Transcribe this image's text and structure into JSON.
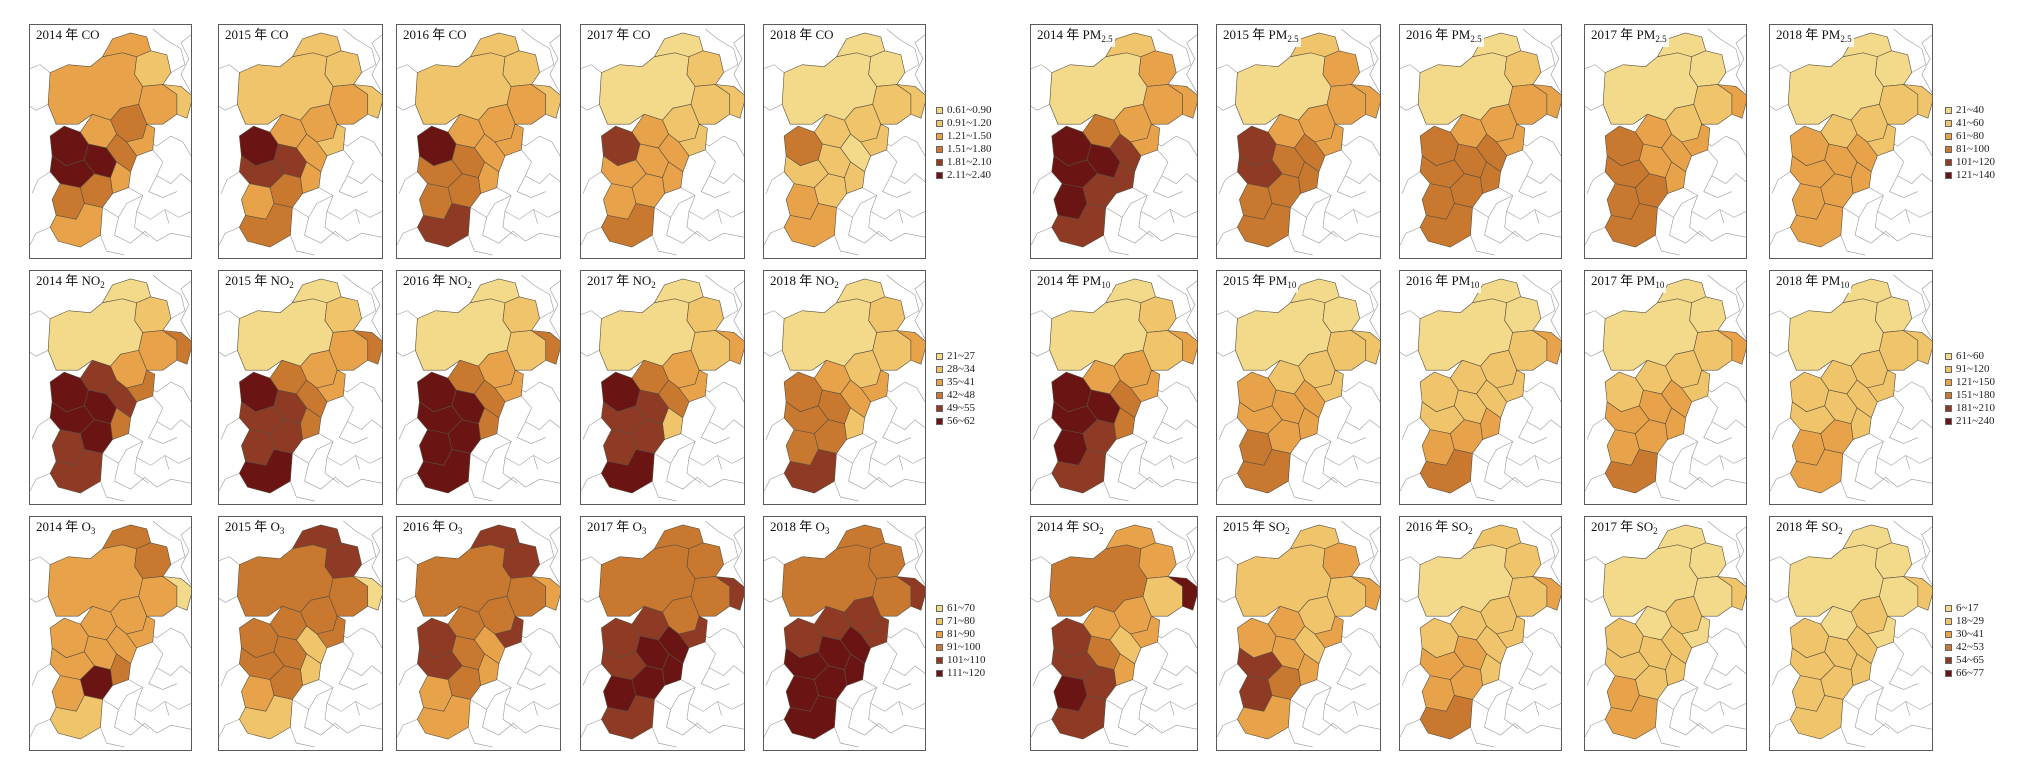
{
  "panels": [
    {
      "id": "co-2014",
      "year": "2014",
      "sep": " 年 ",
      "pol": "CO",
      "sub": "",
      "group": "left",
      "row": 0,
      "col": 0,
      "levels": [
        3,
        3,
        2,
        3,
        4,
        3,
        3,
        2,
        6,
        6,
        6,
        4,
        3,
        4,
        4,
        3
      ]
    },
    {
      "id": "co-2015",
      "year": "2015",
      "sep": " 年 ",
      "pol": "CO",
      "sub": "",
      "group": "left",
      "row": 0,
      "col": 1,
      "levels": [
        2,
        2,
        2,
        3,
        3,
        3,
        2,
        2,
        6,
        5,
        5,
        3,
        3,
        4,
        3,
        4
      ]
    },
    {
      "id": "co-2016",
      "year": "2016",
      "sep": " 年 ",
      "pol": "CO",
      "sub": "",
      "group": "left",
      "row": 0,
      "col": 2,
      "levels": [
        2,
        2,
        2,
        3,
        3,
        3,
        3,
        2,
        6,
        4,
        4,
        3,
        3,
        4,
        4,
        5
      ]
    },
    {
      "id": "co-2017",
      "year": "2017",
      "sep": " 年 ",
      "pol": "CO",
      "sub": "",
      "group": "left",
      "row": 0,
      "col": 3,
      "levels": [
        1,
        1,
        2,
        2,
        2,
        3,
        2,
        2,
        5,
        3,
        3,
        3,
        3,
        3,
        3,
        4
      ]
    },
    {
      "id": "co-2018",
      "year": "2018",
      "sep": " 年 ",
      "pol": "CO",
      "sub": "",
      "group": "left",
      "row": 0,
      "col": 4,
      "levels": [
        1,
        1,
        1,
        2,
        2,
        2,
        2,
        2,
        4,
        2,
        2,
        1,
        2,
        2,
        3,
        3
      ]
    },
    {
      "id": "no2-2014",
      "year": "2014",
      "sep": " 年 ",
      "pol": "NO",
      "sub": "2",
      "group": "left",
      "row": 1,
      "col": 0,
      "levels": [
        1,
        1,
        2,
        3,
        3,
        5,
        4,
        4,
        6,
        6,
        6,
        5,
        4,
        6,
        5,
        5
      ]
    },
    {
      "id": "no2-2015",
      "year": "2015",
      "sep": " 年 ",
      "pol": "NO",
      "sub": "2",
      "group": "left",
      "row": 1,
      "col": 1,
      "levels": [
        1,
        1,
        2,
        3,
        3,
        4,
        3,
        4,
        6,
        5,
        5,
        4,
        4,
        5,
        5,
        6
      ]
    },
    {
      "id": "no2-2016",
      "year": "2016",
      "sep": " 年 ",
      "pol": "NO",
      "sub": "2",
      "group": "left",
      "row": 1,
      "col": 2,
      "levels": [
        1,
        1,
        2,
        2,
        3,
        4,
        3,
        4,
        6,
        6,
        6,
        4,
        4,
        6,
        6,
        6
      ]
    },
    {
      "id": "no2-2017",
      "year": "2017",
      "sep": " 年 ",
      "pol": "NO",
      "sub": "2",
      "group": "left",
      "row": 1,
      "col": 3,
      "levels": [
        1,
        1,
        2,
        2,
        3,
        4,
        3,
        3,
        6,
        5,
        5,
        4,
        2,
        5,
        5,
        6
      ]
    },
    {
      "id": "no2-2018",
      "year": "2018",
      "sep": " 年 ",
      "pol": "NO",
      "sub": "2",
      "group": "left",
      "row": 1,
      "col": 4,
      "levels": [
        1,
        1,
        2,
        2,
        2,
        3,
        3,
        3,
        4,
        4,
        4,
        3,
        2,
        4,
        4,
        5
      ]
    },
    {
      "id": "o3-2014",
      "year": "2014",
      "sep": " 年 ",
      "pol": "O",
      "sub": "3",
      "group": "left",
      "row": 2,
      "col": 0,
      "levels": [
        3,
        4,
        4,
        3,
        3,
        3,
        3,
        1,
        3,
        3,
        3,
        3,
        4,
        6,
        3,
        2
      ]
    },
    {
      "id": "o3-2015",
      "year": "2015",
      "sep": " 年 ",
      "pol": "O",
      "sub": "3",
      "group": "left",
      "row": 2,
      "col": 1,
      "levels": [
        4,
        5,
        5,
        4,
        4,
        4,
        4,
        1,
        4,
        4,
        4,
        2,
        2,
        4,
        3,
        2
      ]
    },
    {
      "id": "o3-2016",
      "year": "2016",
      "sep": " 年 ",
      "pol": "O",
      "sub": "3",
      "group": "left",
      "row": 2,
      "col": 2,
      "levels": [
        4,
        5,
        5,
        4,
        4,
        4,
        5,
        3,
        5,
        5,
        4,
        3,
        3,
        4,
        3,
        3
      ]
    },
    {
      "id": "o3-2017",
      "year": "2017",
      "sep": " 年 ",
      "pol": "O",
      "sub": "3",
      "group": "left",
      "row": 2,
      "col": 3,
      "levels": [
        4,
        4,
        4,
        4,
        4,
        5,
        5,
        5,
        5,
        5,
        6,
        6,
        6,
        6,
        6,
        5
      ]
    },
    {
      "id": "o3-2018",
      "year": "2018",
      "sep": " 年 ",
      "pol": "O",
      "sub": "3",
      "group": "left",
      "row": 2,
      "col": 4,
      "levels": [
        4,
        4,
        4,
        4,
        5,
        5,
        5,
        5,
        5,
        6,
        6,
        6,
        6,
        6,
        6,
        6
      ]
    },
    {
      "id": "pm25-2014",
      "year": "2014",
      "sep": " 年 ",
      "pol": "PM",
      "sub": "2.5",
      "group": "right",
      "row": 0,
      "col": 0,
      "levels": [
        1,
        2,
        3,
        3,
        3,
        4,
        3,
        3,
        6,
        6,
        6,
        5,
        5,
        5,
        6,
        5
      ]
    },
    {
      "id": "pm25-2015",
      "year": "2015",
      "sep": " 年 ",
      "pol": "PM",
      "sub": "2.5",
      "group": "right",
      "row": 0,
      "col": 1,
      "levels": [
        1,
        2,
        3,
        3,
        3,
        3,
        3,
        3,
        5,
        5,
        4,
        4,
        4,
        4,
        4,
        4
      ]
    },
    {
      "id": "pm25-2016",
      "year": "2016",
      "sep": " 年 ",
      "pol": "PM",
      "sub": "2.5",
      "group": "right",
      "row": 0,
      "col": 2,
      "levels": [
        1,
        1,
        2,
        3,
        3,
        3,
        3,
        3,
        4,
        4,
        4,
        4,
        4,
        4,
        4,
        4
      ]
    },
    {
      "id": "pm25-2017",
      "year": "2017",
      "sep": " 年 ",
      "pol": "PM",
      "sub": "2.5",
      "group": "right",
      "row": 0,
      "col": 3,
      "levels": [
        1,
        1,
        1,
        2,
        2,
        3,
        3,
        3,
        4,
        4,
        3,
        3,
        3,
        4,
        4,
        4
      ]
    },
    {
      "id": "pm25-2018",
      "year": "2018",
      "sep": " 年 ",
      "pol": "PM",
      "sub": "2.5",
      "group": "right",
      "row": 0,
      "col": 4,
      "levels": [
        1,
        1,
        1,
        2,
        2,
        2,
        2,
        2,
        3,
        3,
        3,
        3,
        3,
        3,
        3,
        3
      ]
    },
    {
      "id": "pm10-2014",
      "year": "2014",
      "sep": " 年 ",
      "pol": "PM",
      "sub": "10",
      "group": "right",
      "row": 1,
      "col": 0,
      "levels": [
        1,
        1,
        2,
        2,
        3,
        3,
        3,
        3,
        6,
        6,
        6,
        4,
        4,
        5,
        6,
        5
      ]
    },
    {
      "id": "pm10-2015",
      "year": "2015",
      "sep": " 年 ",
      "pol": "PM",
      "sub": "10",
      "group": "right",
      "row": 1,
      "col": 1,
      "levels": [
        1,
        1,
        1,
        2,
        2,
        2,
        2,
        2,
        3,
        3,
        3,
        3,
        3,
        3,
        4,
        4
      ]
    },
    {
      "id": "pm10-2016",
      "year": "2016",
      "sep": " 年 ",
      "pol": "PM",
      "sub": "10",
      "group": "right",
      "row": 1,
      "col": 2,
      "levels": [
        1,
        1,
        1,
        2,
        2,
        2,
        2,
        3,
        2,
        2,
        2,
        2,
        3,
        3,
        3,
        4
      ]
    },
    {
      "id": "pm10-2017",
      "year": "2017",
      "sep": " 年 ",
      "pol": "PM",
      "sub": "10",
      "group": "right",
      "row": 1,
      "col": 3,
      "levels": [
        1,
        1,
        1,
        2,
        2,
        2,
        2,
        3,
        2,
        3,
        3,
        3,
        3,
        3,
        3,
        4
      ]
    },
    {
      "id": "pm10-2018",
      "year": "2018",
      "sep": " 年 ",
      "pol": "PM",
      "sub": "10",
      "group": "right",
      "row": 1,
      "col": 4,
      "levels": [
        1,
        1,
        1,
        2,
        2,
        2,
        2,
        2,
        2,
        2,
        2,
        2,
        2,
        3,
        3,
        3
      ]
    },
    {
      "id": "so2-2014",
      "year": "2014",
      "sep": " 年 ",
      "pol": "SO",
      "sub": "2",
      "group": "right",
      "row": 2,
      "col": 0,
      "levels": [
        4,
        3,
        3,
        2,
        3,
        3,
        3,
        6,
        5,
        5,
        4,
        2,
        3,
        5,
        6,
        5
      ]
    },
    {
      "id": "so2-2015",
      "year": "2015",
      "sep": " 年 ",
      "pol": "SO",
      "sub": "2",
      "group": "right",
      "row": 2,
      "col": 1,
      "levels": [
        2,
        2,
        3,
        2,
        2,
        3,
        3,
        3,
        3,
        5,
        3,
        2,
        3,
        4,
        5,
        3
      ]
    },
    {
      "id": "so2-2016",
      "year": "2016",
      "sep": " 年 ",
      "pol": "SO",
      "sub": "2",
      "group": "right",
      "row": 2,
      "col": 2,
      "levels": [
        1,
        2,
        2,
        2,
        2,
        2,
        2,
        3,
        2,
        3,
        3,
        2,
        2,
        3,
        3,
        4
      ]
    },
    {
      "id": "so2-2017",
      "year": "2017",
      "sep": " 年 ",
      "pol": "SO",
      "sub": "2",
      "group": "right",
      "row": 2,
      "col": 3,
      "levels": [
        1,
        1,
        1,
        1,
        2,
        1,
        1,
        2,
        2,
        2,
        2,
        2,
        2,
        2,
        3,
        3
      ]
    },
    {
      "id": "so2-2018",
      "year": "2018",
      "sep": " 年 ",
      "pol": "SO",
      "sub": "2",
      "group": "right",
      "row": 2,
      "col": 4,
      "levels": [
        1,
        1,
        1,
        1,
        2,
        1,
        1,
        2,
        2,
        2,
        2,
        2,
        2,
        2,
        2,
        2
      ]
    }
  ],
  "legends": [
    {
      "id": "legend-co",
      "group": "left",
      "row": 0,
      "items": [
        "0.61~0.90",
        "0.91~1.20",
        "1.21~1.50",
        "1.51~1.80",
        "1.81~2.10",
        "2.11~2.40"
      ]
    },
    {
      "id": "legend-no2",
      "group": "left",
      "row": 1,
      "items": [
        "21~27",
        "28~34",
        "35~41",
        "42~48",
        "49~55",
        "56~62"
      ]
    },
    {
      "id": "legend-o3",
      "group": "left",
      "row": 2,
      "items": [
        "61~70",
        "71~80",
        "81~90",
        "91~100",
        "101~110",
        "111~120"
      ]
    },
    {
      "id": "legend-pm25",
      "group": "right",
      "row": 0,
      "items": [
        "21~40",
        "41~60",
        "61~80",
        "81~100",
        "101~120",
        "121~140"
      ]
    },
    {
      "id": "legend-pm10",
      "group": "right",
      "row": 1,
      "items": [
        "61~60",
        "91~120",
        "121~150",
        "151~180",
        "181~210",
        "211~240"
      ]
    },
    {
      "id": "legend-so2",
      "group": "right",
      "row": 2,
      "items": [
        "6~17",
        "18~29",
        "30~41",
        "42~53",
        "54~65",
        "66~77"
      ]
    }
  ],
  "palette": [
    "#f3d98a",
    "#efc46a",
    "#e8a24a",
    "#c8782f",
    "#8e3a24",
    "#6a1414"
  ]
}
